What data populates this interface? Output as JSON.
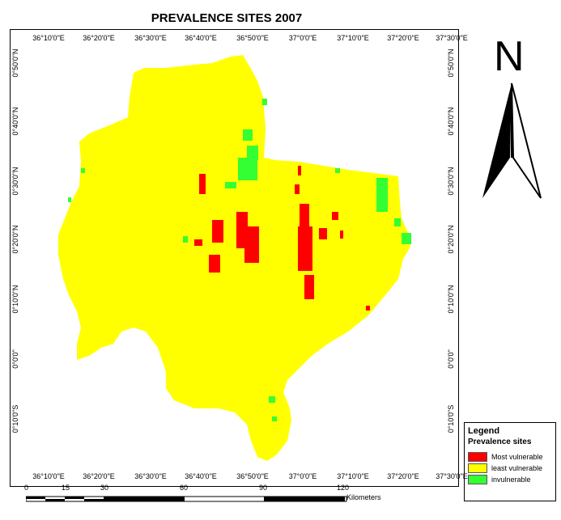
{
  "title": "PREVALENCE SITES 2007",
  "axes": {
    "top_ticks": [
      "36°10'0\"E",
      "36°20'0\"E",
      "36°30'0\"E",
      "36°40'0\"E",
      "36°50'0\"E",
      "37°0'0\"E",
      "37°10'0\"E",
      "37°20'0\"E",
      "37°30'0\"E"
    ],
    "bottom_ticks": [
      "36°10'0\"E",
      "36°20'0\"E",
      "36°30'0\"E",
      "36°40'0\"E",
      "36°50'0\"E",
      "37°0'0\"E",
      "37°10'0\"E",
      "37°20'0\"E",
      "37°30'0\"E"
    ],
    "left_ticks": [
      "0°50'0\"N",
      "0°40'0\"N",
      "0°30'0\"N",
      "0°20'0\"N",
      "0°10'0\"N",
      "0°0'0\"",
      "0°10'0\"S"
    ],
    "right_ticks": [
      "0°50'0\"N",
      "0°40'0\"N",
      "0°30'0\"N",
      "0°20'0\"N",
      "0°10'0\"N",
      "0°0'0\"",
      "0°10'0\"S"
    ]
  },
  "north_arrow": {
    "letter": "N",
    "icon": "north-arrow-icon"
  },
  "legend": {
    "title": "Legend",
    "subtitle": "Prevalence sites",
    "items": [
      {
        "label": "Most vulnerable",
        "color": "#ff0000"
      },
      {
        "label": "least vulnerable",
        "color": "#ffff00"
      },
      {
        "label": "invulnerable",
        "color": "#33ff33"
      }
    ]
  },
  "scalebar": {
    "labels": [
      "0",
      "15",
      "30",
      "60",
      "90",
      "120"
    ],
    "unit": "Kilometers"
  },
  "colors": {
    "most_vulnerable": "#ff0000",
    "least_vulnerable": "#ffff00",
    "invulnerable": "#33ff33"
  }
}
